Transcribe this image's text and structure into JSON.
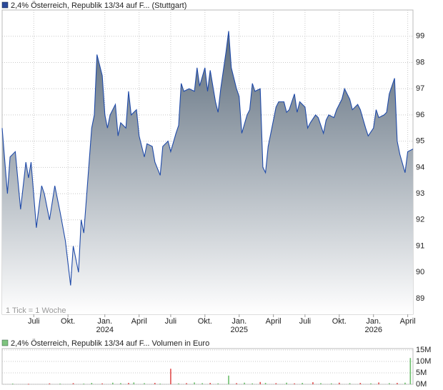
{
  "chart_data": [
    {
      "type": "area-line",
      "legend": "2,4% Österreich, Republik 13/34 auf F... (Stuttgart)",
      "note": "1 Tick = 1 Woche",
      "color": "#1f4aa8",
      "fill_top": "#5b6b7b",
      "fill_bottom": "#ffffff",
      "x": [
        0,
        2,
        3,
        5,
        7,
        9,
        10,
        11,
        13,
        15,
        16,
        18,
        20,
        22,
        24,
        26,
        27,
        29,
        30,
        31,
        32,
        34,
        35,
        36,
        38,
        39,
        40,
        41,
        43,
        44,
        45,
        47,
        48,
        49,
        51,
        52,
        54,
        55,
        57,
        58,
        60,
        61,
        63,
        64,
        66,
        67,
        68,
        69,
        71,
        73,
        74,
        75,
        77,
        78,
        79,
        81,
        82,
        83,
        85,
        86,
        87,
        89,
        90,
        91,
        93,
        94,
        95,
        96,
        98,
        99,
        100,
        101,
        102,
        104,
        105,
        107,
        108,
        109,
        111,
        112,
        113,
        115,
        116,
        117,
        119,
        120,
        122,
        123,
        124,
        126,
        127,
        129,
        130,
        132,
        133,
        135,
        136,
        138,
        139,
        141,
        142,
        143,
        145,
        146,
        147,
        149,
        150,
        151,
        153,
        154,
        156
      ],
      "values": [
        95.5,
        93.0,
        94.4,
        94.6,
        92.4,
        94.2,
        93.6,
        94.2,
        91.7,
        93.3,
        93.0,
        92.0,
        93.3,
        92.3,
        91.2,
        89.5,
        91.0,
        90.0,
        92.0,
        91.5,
        92.8,
        95.5,
        96.0,
        98.3,
        97.5,
        96.0,
        95.5,
        96.0,
        96.4,
        95.2,
        95.7,
        95.5,
        96.9,
        96.0,
        96.2,
        95.2,
        94.4,
        94.9,
        94.8,
        94.2,
        93.7,
        94.8,
        95.0,
        94.6,
        95.3,
        95.6,
        97.2,
        96.9,
        97.0,
        96.9,
        97.8,
        97.1,
        97.8,
        96.9,
        97.7,
        96.5,
        96.1,
        97.0,
        98.4,
        99.2,
        97.8,
        97.0,
        96.7,
        95.3,
        96.0,
        96.2,
        97.2,
        96.9,
        97.0,
        94.0,
        93.8,
        94.8,
        95.3,
        96.3,
        96.5,
        96.5,
        96.1,
        96.2,
        96.8,
        96.1,
        96.5,
        96.3,
        95.5,
        95.7,
        96.0,
        95.9,
        95.3,
        95.8,
        96.0,
        95.9,
        96.2,
        96.6,
        97.0,
        96.6,
        96.2,
        96.4,
        96.2,
        95.5,
        95.2,
        95.5,
        96.2,
        95.9,
        96.0,
        96.1,
        96.8,
        97.4,
        95.0,
        94.5,
        93.8,
        94.6,
        94.7
      ],
      "xlim": [
        0,
        156
      ],
      "xticks": [
        {
          "value": 12,
          "label": "Juli"
        },
        {
          "value": 25,
          "label": "Okt."
        },
        {
          "value": 39,
          "label": "Jan."
        },
        {
          "value": 52,
          "label": "April"
        },
        {
          "value": 64,
          "label": "Juli"
        },
        {
          "value": 77,
          "label": "Okt."
        },
        {
          "value": 90,
          "label": "Jan."
        },
        {
          "value": 103,
          "label": "April"
        },
        {
          "value": 115,
          "label": "Juli"
        },
        {
          "value": 128,
          "label": "Okt."
        },
        {
          "value": 141,
          "label": "Jan."
        },
        {
          "value": 154,
          "label": "April"
        }
      ],
      "xtick_years": [
        {
          "value": 39,
          "label": "2024"
        },
        {
          "value": 90,
          "label": "2025"
        },
        {
          "value": 141,
          "label": "2026"
        }
      ],
      "ylim": [
        88.4,
        100
      ],
      "yticks": [
        89,
        90,
        91,
        92,
        93,
        94,
        95,
        96,
        97,
        98,
        99
      ],
      "grid": true
    },
    {
      "type": "volume-bar",
      "legend": "2,4% Österreich, Republik 13/34 auf F... Volumen in Euro",
      "color": "#6dbf6d",
      "x": [
        4,
        10,
        18,
        22,
        27,
        31,
        34,
        38,
        42,
        45,
        48,
        50,
        54,
        58,
        60,
        64,
        67,
        70,
        73,
        76,
        79,
        82,
        86,
        89,
        92,
        95,
        98,
        100,
        104,
        108,
        111,
        114,
        118,
        121,
        125,
        128,
        132,
        136,
        140,
        143,
        147,
        150,
        153,
        155
      ],
      "values": [
        300000,
        200000,
        400000,
        300000,
        500000,
        300000,
        600000,
        400000,
        700000,
        500000,
        600000,
        800000,
        500000,
        600000,
        300000,
        6800000,
        400000,
        500000,
        800000,
        500000,
        600000,
        400000,
        3800000,
        500000,
        700000,
        400000,
        1000000,
        600000,
        500000,
        700000,
        400000,
        600000,
        900000,
        500000,
        400000,
        700000,
        500000,
        600000,
        400000,
        800000,
        500000,
        600000,
        700000,
        11500000
      ],
      "colors": [
        "#6dbf6d",
        "#e05050",
        "#e05050",
        "#6dbf6d",
        "#e05050",
        "#6dbf6d",
        "#6dbf6d",
        "#e05050",
        "#6dbf6d",
        "#6dbf6d",
        "#e05050",
        "#6dbf6d",
        "#6dbf6d",
        "#e05050",
        "#6dbf6d",
        "#e05050",
        "#6dbf6d",
        "#e05050",
        "#6dbf6d",
        "#6dbf6d",
        "#e05050",
        "#6dbf6d",
        "#6dbf6d",
        "#e05050",
        "#6dbf6d",
        "#6dbf6d",
        "#e05050",
        "#6dbf6d",
        "#e05050",
        "#6dbf6d",
        "#e05050",
        "#6dbf6d",
        "#e05050",
        "#6dbf6d",
        "#6dbf6d",
        "#e05050",
        "#6dbf6d",
        "#e05050",
        "#6dbf6d",
        "#e05050",
        "#6dbf6d",
        "#e05050",
        "#6dbf6d",
        "#6dbf6d"
      ],
      "xlim": [
        0,
        156
      ],
      "ylim": [
        0,
        15000000
      ],
      "yticks": [
        {
          "value": 0,
          "label": "0M"
        },
        {
          "value": 5000000,
          "label": "5M"
        },
        {
          "value": 10000000,
          "label": "10M"
        },
        {
          "value": 15000000,
          "label": "15M"
        }
      ]
    }
  ]
}
